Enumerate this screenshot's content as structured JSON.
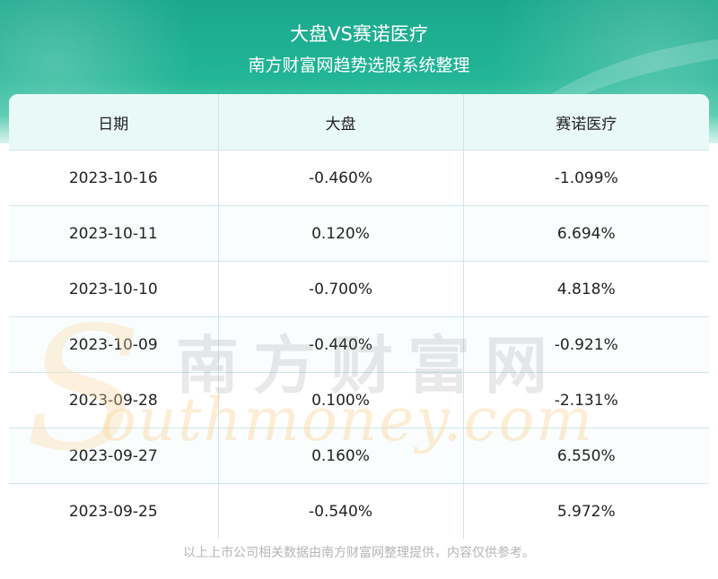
{
  "header": {
    "title": "大盘VS赛诺医疗",
    "subtitle": "南方财富网趋势选股系统整理"
  },
  "table": {
    "columns": [
      "日期",
      "大盘",
      "赛诺医疗"
    ],
    "rows": [
      [
        "2023-10-16",
        "-0.460%",
        "-1.099%"
      ],
      [
        "2023-10-11",
        "0.120%",
        "6.694%"
      ],
      [
        "2023-10-10",
        "-0.700%",
        "4.818%"
      ],
      [
        "2023-10-09",
        "-0.440%",
        "-0.921%"
      ],
      [
        "2023-09-28",
        "0.100%",
        "-2.131%"
      ],
      [
        "2023-09-27",
        "0.160%",
        "6.550%"
      ],
      [
        "2023-09-25",
        "-0.540%",
        "5.972%"
      ]
    ]
  },
  "watermark": {
    "cn": "南方财富网",
    "en_initial": "S",
    "en_rest": "outhmoney.com"
  },
  "footer": {
    "note": "以上上市公司相关数据由南方财富网整理提供，内容仅供参考。"
  },
  "colors": {
    "header_green": "#1aa88c",
    "table_header_bg": "#e9f9f8",
    "grid_line": "#cfe6e6"
  }
}
